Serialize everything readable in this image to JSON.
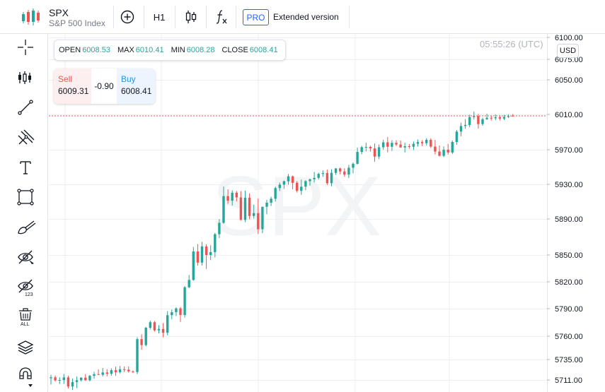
{
  "header": {
    "symbol": "SPX",
    "description": "S&P 500 Index",
    "timeframe": "H1",
    "pro_badge": "PRO",
    "extended_label": "Extended version"
  },
  "ohlc": {
    "open_label": "OPEN",
    "open_value": "6008.53",
    "max_label": "MAX",
    "max_value": "6010.41",
    "min_label": "MIN",
    "min_value": "6008.28",
    "close_label": "CLOSE",
    "close_value": "6008.41"
  },
  "trade": {
    "sell_label": "Sell",
    "sell_price": "6009.31",
    "spread": "-0.90",
    "buy_label": "Buy",
    "buy_price": "6008.41"
  },
  "clock": "05:55:26 (UTC)",
  "currency": "USD",
  "left_tools": [
    "crosshair-icon",
    "indicators-icon",
    "trend-line-icon",
    "pitchfork-icon",
    "text-icon",
    "rectangle-icon",
    "brush-icon",
    "hide-drawings-icon",
    "hide-labels-icon",
    "remove-all-icon",
    "layers-icon",
    "magnet-icon"
  ],
  "colors": {
    "up": "#26a69a",
    "down": "#ef5350",
    "price_line": "#ef5350",
    "accent": "#2962ff"
  },
  "chart_data": {
    "type": "candlestick",
    "watermark": "SPX",
    "y_axis_ticks": [
      "6100.00",
      "6075.00",
      "6050.00",
      "6010.00",
      "5970.00",
      "5930.00",
      "5890.00",
      "5850.00",
      "5820.00",
      "5790.00",
      "5760.00",
      "5735.00",
      "5711.00"
    ],
    "current_price": 6008.41,
    "candles": [
      [
        5713.0,
        5717.1,
        5705.6,
        5714.1
      ],
      [
        5714.1,
        5716.3,
        5709.1,
        5710.6
      ],
      [
        5710.6,
        5714.2,
        5706.2,
        5711.0
      ],
      [
        5711.0,
        5718.1,
        5706.4,
        5714.0
      ],
      [
        5714.0,
        5716.1,
        5700.9,
        5703.3
      ],
      [
        5703.3,
        5712.8,
        5699.4,
        5708.6
      ],
      [
        5708.6,
        5715.1,
        5701.4,
        5710.7
      ],
      [
        5710.7,
        5714.3,
        5709.1,
        5713.7
      ],
      [
        5713.7,
        5717.9,
        5710.1,
        5710.7
      ],
      [
        5710.7,
        5716.9,
        5709.5,
        5715.9
      ],
      [
        5715.9,
        5720.6,
        5712.4,
        5717.8
      ],
      [
        5717.8,
        5723.4,
        5716.8,
        5717.1
      ],
      [
        5717.1,
        5725.1,
        5715.1,
        5719.8
      ],
      [
        5719.8,
        5723.6,
        5715.3,
        5718.3
      ],
      [
        5718.3,
        5724.6,
        5716.0,
        5722.5
      ],
      [
        5722.5,
        5726.6,
        5715.8,
        5720.2
      ],
      [
        5720.2,
        5727.5,
        5718.6,
        5723.5
      ],
      [
        5723.5,
        5727.0,
        5720.2,
        5723.1
      ],
      [
        5723.1,
        5726.9,
        5719.6,
        5721.1
      ],
      [
        5721.1,
        5722.2,
        5719.0,
        5720.3
      ],
      [
        5720.3,
        5758.8,
        5717.9,
        5756.8
      ],
      [
        5756.8,
        5762.0,
        5745.6,
        5750.5
      ],
      [
        5750.5,
        5770.1,
        5749.1,
        5769.2
      ],
      [
        5769.2,
        5777.0,
        5767.3,
        5775.2
      ],
      [
        5775.2,
        5776.6,
        5765.0,
        5766.4
      ],
      [
        5766.4,
        5772.0,
        5763.1,
        5767.9
      ],
      [
        5767.9,
        5774.3,
        5758.8,
        5763.7
      ],
      [
        5763.7,
        5787.4,
        5760.8,
        5782.9
      ],
      [
        5782.9,
        5789.1,
        5778.6,
        5786.2
      ],
      [
        5786.2,
        5791.4,
        5781.9,
        5790.3
      ],
      [
        5790.3,
        5791.9,
        5775.6,
        5783.1
      ],
      [
        5783.1,
        5815.3,
        5780.4,
        5813.9
      ],
      [
        5813.9,
        5827.7,
        5812.7,
        5822.1
      ],
      [
        5822.1,
        5858.9,
        5821.2,
        5853.9
      ],
      [
        5853.9,
        5862.2,
        5838.0,
        5841.5
      ],
      [
        5841.5,
        5864.6,
        5838.3,
        5859.5
      ],
      [
        5859.5,
        5861.9,
        5834.4,
        5850.0
      ],
      [
        5850.0,
        5860.8,
        5844.2,
        5853.2
      ],
      [
        5853.2,
        5874.6,
        5847.3,
        5873.1
      ],
      [
        5873.1,
        5889.9,
        5868.7,
        5885.7
      ],
      [
        5885.7,
        5927.4,
        5884.8,
        5916.4
      ],
      [
        5916.4,
        5924.3,
        5907.5,
        5911.1
      ],
      [
        5911.1,
        5923.1,
        5905.5,
        5920.3
      ],
      [
        5920.3,
        5922.3,
        5910.2,
        5914.9
      ],
      [
        5914.9,
        5922.0,
        5888.1,
        5889.0
      ],
      [
        5889.0,
        5922.8,
        5886.5,
        5914.6
      ],
      [
        5914.6,
        5919.7,
        5889.6,
        5893.4
      ],
      [
        5893.4,
        5906.4,
        5890.5,
        5896.7
      ],
      [
        5896.7,
        5913.7,
        5873.3,
        5878.6
      ],
      [
        5878.6,
        5904.2,
        5874.1,
        5904.1
      ],
      [
        5904.1,
        5912.1,
        5895.5,
        5908.8
      ],
      [
        5908.8,
        5915.7,
        5905.0,
        5913.4
      ],
      [
        5913.4,
        5927.4,
        5910.0,
        5925.7
      ],
      [
        5925.7,
        5932.1,
        5922.3,
        5929.7
      ],
      [
        5929.7,
        5934.4,
        5924.8,
        5933.6
      ],
      [
        5933.6,
        5941.9,
        5929.7,
        5939.3
      ],
      [
        5939.3,
        5940.1,
        5924.2,
        5931.8
      ],
      [
        5931.8,
        5933.7,
        5920.5,
        5922.5
      ],
      [
        5922.5,
        5935.5,
        5918.0,
        5927.3
      ],
      [
        5927.3,
        5934.7,
        5923.2,
        5933.7
      ],
      [
        5933.7,
        5936.6,
        5928.5,
        5935.8
      ],
      [
        5935.8,
        5944.3,
        5932.2,
        5937.5
      ],
      [
        5937.5,
        5943.4,
        5935.6,
        5942.1
      ],
      [
        5942.1,
        5946.2,
        5938.6,
        5943.0
      ],
      [
        5943.0,
        5946.9,
        5929.4,
        5931.3
      ],
      [
        5931.3,
        5947.4,
        5927.9,
        5943.3
      ],
      [
        5943.3,
        5948.9,
        5940.9,
        5948.4
      ],
      [
        5948.4,
        5949.3,
        5941.6,
        5944.9
      ],
      [
        5944.9,
        5948.5,
        5938.8,
        5941.3
      ],
      [
        5941.3,
        5952.5,
        5937.4,
        5949.2
      ],
      [
        5949.2,
        5955.3,
        5942.7,
        5953.8
      ],
      [
        5953.8,
        5972.5,
        5952.9,
        5967.5
      ],
      [
        5967.5,
        5974.4,
        5964.8,
        5972.9
      ],
      [
        5972.9,
        5977.9,
        5968.2,
        5973.2
      ],
      [
        5973.2,
        5974.6,
        5967.8,
        5971.5
      ],
      [
        5971.5,
        5977.0,
        5956.0,
        5962.1
      ],
      [
        5962.1,
        5976.0,
        5959.0,
        5972.8
      ],
      [
        5972.8,
        5981.3,
        5970.1,
        5978.4
      ],
      [
        5978.4,
        5984.5,
        5967.0,
        5973.4
      ],
      [
        5973.4,
        5980.8,
        5968.6,
        5977.8
      ],
      [
        5977.8,
        5980.8,
        5974.2,
        5975.9
      ],
      [
        5975.9,
        5980.4,
        5972.2,
        5972.6
      ],
      [
        5972.6,
        5978.0,
        5966.9,
        5974.0
      ],
      [
        5974.0,
        5976.5,
        5971.1,
        5973.4
      ],
      [
        5973.4,
        5979.3,
        5969.6,
        5976.7
      ],
      [
        5976.7,
        5981.6,
        5973.6,
        5978.7
      ],
      [
        5978.7,
        5980.7,
        5974.1,
        5977.4
      ],
      [
        5977.4,
        5983.1,
        5974.9,
        5981.2
      ],
      [
        5981.2,
        5983.1,
        5972.0,
        5973.6
      ],
      [
        5973.6,
        5981.1,
        5964.6,
        5967.9
      ],
      [
        5967.9,
        5974.8,
        5962.1,
        5963.0
      ],
      [
        5963.0,
        5973.8,
        5961.4,
        5970.0
      ],
      [
        5970.0,
        5976.7,
        5964.5,
        5966.8
      ],
      [
        5966.8,
        5980.4,
        5965.1,
        5978.8
      ],
      [
        5978.8,
        5992.4,
        5975.7,
        5990.6
      ],
      [
        5990.6,
        6000.6,
        5985.4,
        5996.9
      ],
      [
        5996.9,
        6004.7,
        5993.7,
        5998.1
      ],
      [
        5998.1,
        6009.7,
        5995.5,
        6007.0
      ],
      [
        6007.0,
        6013.4,
        6004.3,
        6008.1
      ],
      [
        6008.1,
        6010.6,
        5994.0,
        5999.1
      ],
      [
        5999.1,
        6006.3,
        5997.2,
        6004.6
      ],
      [
        6004.6,
        6010.7,
        6003.8,
        6006.2
      ],
      [
        6006.2,
        6008.3,
        6003.0,
        6005.7
      ],
      [
        6005.7,
        6010.0,
        6003.5,
        6006.8
      ],
      [
        6006.8,
        6008.9,
        6003.1,
        6005.3
      ],
      [
        6005.3,
        6009.5,
        6003.6,
        6007.1
      ],
      [
        6007.1,
        6010.1,
        6005.9,
        6008.0
      ],
      [
        6008.5,
        6010.4,
        6008.3,
        6008.4
      ]
    ]
  }
}
